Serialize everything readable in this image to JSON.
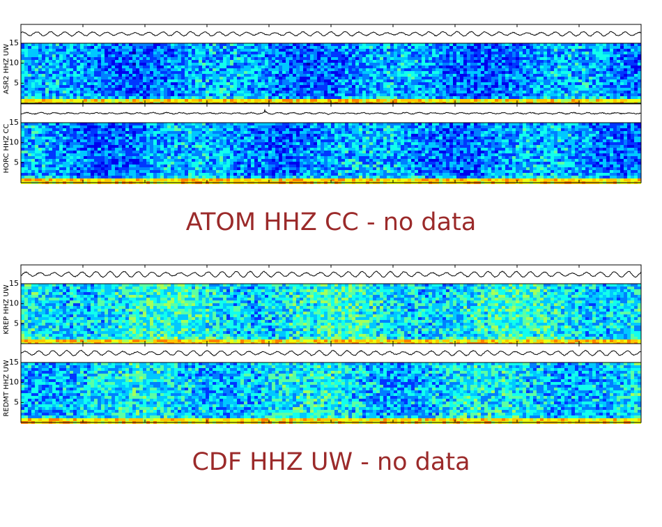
{
  "panels": [
    {
      "label": "ASR2 HHZ UW",
      "ylim": [
        0,
        15
      ],
      "yticks": [
        5,
        10,
        15
      ]
    },
    {
      "label": "HORC HHZ CC",
      "ylim": [
        0,
        15
      ],
      "yticks": [
        5,
        10,
        15
      ]
    },
    {
      "label": "KREP HHZ UW",
      "ylim": [
        0,
        15
      ],
      "yticks": [
        5,
        10,
        15
      ]
    },
    {
      "label": "REDMT HHZ UW",
      "ylim": [
        0,
        15
      ],
      "yticks": [
        5,
        10,
        15
      ]
    }
  ],
  "messages": [
    "ATOM HHZ CC - no data",
    "CDF HHZ UW - no data"
  ]
}
